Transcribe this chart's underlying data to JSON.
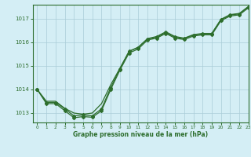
{
  "title": "Graphe pression niveau de la mer (hPa)",
  "bg_color": "#d4eef5",
  "grid_color": "#aaccd8",
  "line_color": "#2d6e2d",
  "xlim": [
    -0.5,
    23
  ],
  "ylim": [
    1012.6,
    1017.6
  ],
  "yticks": [
    1013,
    1014,
    1015,
    1016,
    1017
  ],
  "xticks": [
    0,
    1,
    2,
    3,
    4,
    5,
    6,
    7,
    8,
    9,
    10,
    11,
    12,
    13,
    14,
    15,
    16,
    17,
    18,
    19,
    20,
    21,
    22,
    23
  ],
  "series1_x": [
    0,
    1,
    2,
    3,
    4,
    5,
    6,
    7,
    8,
    9,
    10,
    11,
    12,
    13,
    14,
    15,
    16,
    17,
    18,
    19,
    20,
    21,
    22,
    23
  ],
  "series1_y": [
    1014.0,
    1013.4,
    1013.4,
    1013.1,
    1012.8,
    1012.85,
    1012.82,
    1013.1,
    1014.0,
    1014.82,
    1015.55,
    1015.72,
    1016.1,
    1016.18,
    1016.38,
    1016.18,
    1016.12,
    1016.27,
    1016.32,
    1016.32,
    1016.92,
    1017.12,
    1017.17,
    1017.47
  ],
  "series2_x": [
    0,
    1,
    2,
    3,
    4,
    5,
    6,
    7,
    8,
    9,
    10,
    11,
    12,
    13,
    14,
    15,
    16,
    17,
    18,
    19,
    20,
    21,
    22,
    23
  ],
  "series2_y": [
    1014.0,
    1013.45,
    1013.45,
    1013.18,
    1012.88,
    1012.92,
    1012.88,
    1013.18,
    1014.08,
    1014.88,
    1015.62,
    1015.78,
    1016.14,
    1016.22,
    1016.42,
    1016.22,
    1016.16,
    1016.31,
    1016.36,
    1016.36,
    1016.96,
    1017.16,
    1017.21,
    1017.51
  ],
  "series3_x": [
    0,
    1,
    2,
    3,
    4,
    5,
    6,
    7,
    8,
    9,
    10,
    11,
    12,
    13,
    14,
    15,
    16,
    17,
    18,
    19,
    20,
    21,
    22,
    23
  ],
  "series3_y": [
    1014.0,
    1013.5,
    1013.5,
    1013.2,
    1013.0,
    1012.95,
    1013.0,
    1013.4,
    1014.2,
    1014.9,
    1015.62,
    1015.8,
    1016.16,
    1016.25,
    1016.45,
    1016.25,
    1016.18,
    1016.33,
    1016.38,
    1016.38,
    1016.98,
    1017.18,
    1017.23,
    1017.53
  ]
}
